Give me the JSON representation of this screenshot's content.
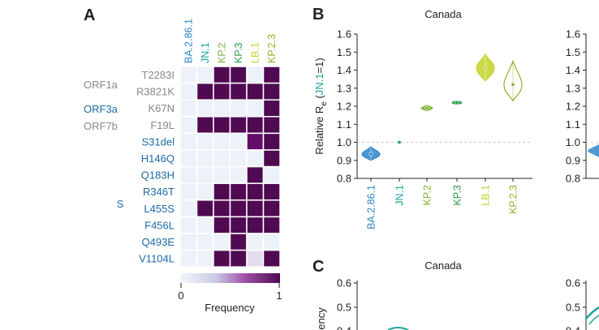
{
  "panel_labels": {
    "A": "A",
    "B": "B",
    "C": "C"
  },
  "colors": {
    "BA.2.86.1": "#2e86c8",
    "JN.1": "#18a39a",
    "KP.2": "#7bb33a",
    "KP.3": "#2f9a4c",
    "LB.1": "#c3d32a",
    "KP.2.3": "#93ae28",
    "orf_gray": "#888888",
    "protein_blue": "#1c6aa5",
    "cell_high": "#4f0a52",
    "cell_low": "#edf1f8",
    "cell_mid": "#94139a"
  },
  "chart_data": [
    {
      "type": "heatmap",
      "panel": "A",
      "title": "",
      "columns": [
        "BA.2.86.1",
        "JN.1",
        "KP.2",
        "KP.3",
        "LB.1",
        "KP.2.3"
      ],
      "rows": [
        {
          "protein": "ORF1a",
          "mutation": "T2283I",
          "values": [
            0,
            0,
            1,
            1,
            0,
            1
          ]
        },
        {
          "protein": "",
          "mutation": "R3821K",
          "values": [
            0,
            1,
            1,
            1,
            1,
            1
          ]
        },
        {
          "protein": "ORF3a",
          "mutation": "K67N",
          "values": [
            0,
            0,
            0,
            0,
            0,
            1
          ]
        },
        {
          "protein": "ORF7b",
          "mutation": "F19L",
          "values": [
            0,
            1,
            1,
            1,
            1,
            1
          ]
        },
        {
          "protein": "",
          "mutation": "S31del",
          "values": [
            0,
            0,
            0,
            0,
            0.85,
            1
          ]
        },
        {
          "protein": "",
          "mutation": "H146Q",
          "values": [
            0,
            0,
            0,
            0,
            0,
            1
          ]
        },
        {
          "protein": "",
          "mutation": "Q183H",
          "values": [
            0,
            0,
            0,
            0,
            1,
            0
          ]
        },
        {
          "protein": "S",
          "mutation": "R346T",
          "values": [
            0,
            0,
            1,
            1,
            1,
            1
          ]
        },
        {
          "protein": "",
          "mutation": "L455S",
          "values": [
            0,
            1,
            1,
            1,
            1,
            1
          ]
        },
        {
          "protein": "",
          "mutation": "F456L",
          "values": [
            0,
            0,
            1,
            1,
            1,
            1
          ]
        },
        {
          "protein": "",
          "mutation": "Q493E",
          "values": [
            0,
            0,
            0,
            1,
            0,
            0
          ]
        },
        {
          "protein": "",
          "mutation": "V1104L",
          "values": [
            0,
            0,
            1,
            1,
            0.05,
            1
          ]
        }
      ],
      "colorbar": {
        "label": "Frequency",
        "min_label": "0",
        "max_label": "1",
        "range": [
          0,
          1
        ]
      }
    },
    {
      "type": "violin",
      "panel": "B",
      "title": "Canada",
      "ylabel_main": "Relative R",
      "ylabel_sub": "e",
      "ylabel_open": " (",
      "ylabel_ref": "JN.1",
      "ylabel_close": "=1)",
      "ylim": [
        0.8,
        1.6
      ],
      "yticks": [
        "0.8",
        "0.9",
        "1.0",
        "1.1",
        "1.2",
        "1.3",
        "1.4",
        "1.5",
        "1.6"
      ],
      "reference_line": 1.0,
      "categories": [
        "BA.2.86.1",
        "JN.1",
        "KP.2",
        "KP.3",
        "LB.1",
        "KP.2.3"
      ],
      "median": [
        0.935,
        1.0,
        1.19,
        1.22,
        1.415,
        1.32
      ],
      "low": [
        0.9,
        1.0,
        1.175,
        1.21,
        1.34,
        1.23
      ],
      "high": [
        0.975,
        1.0,
        1.205,
        1.23,
        1.49,
        1.45
      ]
    },
    {
      "type": "violin",
      "panel": "B2",
      "title": "",
      "ylim": [
        0.8,
        1.6
      ],
      "yticks": [
        "0.8",
        "0.9",
        "1.0",
        "1.1",
        "1.2",
        "1.3",
        "1.4",
        "1.5",
        "1.6"
      ]
    },
    {
      "type": "line",
      "panel": "C",
      "title": "Canada",
      "ylabel": "ency",
      "yticks": [
        "0.6",
        "0.5",
        "0.4"
      ],
      "ylim": [
        0.4,
        0.6
      ]
    },
    {
      "type": "line",
      "panel": "C2",
      "title": "",
      "yticks": [
        "0.6",
        "0.5",
        "0.4"
      ],
      "ylim": [
        0.4,
        0.6
      ]
    }
  ]
}
